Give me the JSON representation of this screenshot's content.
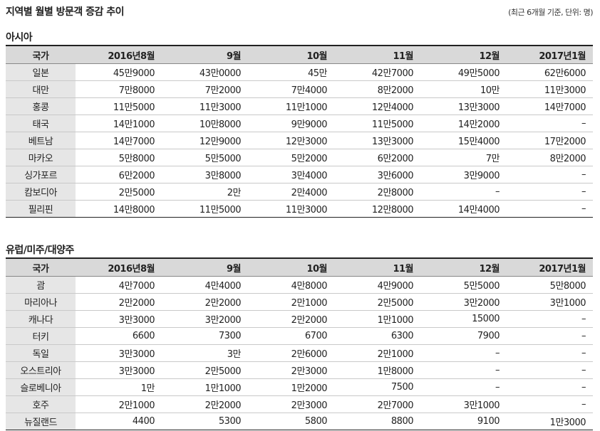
{
  "title": "지역별 월별 방문객 증감 추이",
  "note": "(최근 6개월 기준, 단위: 명)",
  "sections": [
    {
      "title": "아시아",
      "header": [
        "국가",
        "2016년8월",
        "9월",
        "10월",
        "11월",
        "12월",
        "2017년1월"
      ],
      "rows": [
        [
          "일본",
          "45만9000",
          "43만0000",
          "45만",
          "42만7000",
          "49만5000",
          "62만6000"
        ],
        [
          "대만",
          "7만8000",
          "7만2000",
          "7만4000",
          "8만2000",
          "10만",
          "11만3000"
        ],
        [
          "홍콩",
          "11만5000",
          "11만3000",
          "11만1000",
          "12만4000",
          "13만3000",
          "14만7000"
        ],
        [
          "태국",
          "14만1000",
          "10만8000",
          "9만9000",
          "11만5000",
          "14만2000",
          "–"
        ],
        [
          "베트남",
          "14만7000",
          "12만9000",
          "12만3000",
          "13만3000",
          "15만4000",
          "17만2000"
        ],
        [
          "마카오",
          "5만8000",
          "5만5000",
          "5만2000",
          "6만2000",
          "7만",
          "8만2000"
        ],
        [
          "싱가포르",
          "6만2000",
          "3만8000",
          "3만4000",
          "3만6000",
          "3만9000",
          "–"
        ],
        [
          "캄보디아",
          "2만5000",
          "2만",
          "2만4000",
          "2만8000",
          "–",
          "–"
        ],
        [
          "필리핀",
          "14만8000",
          "11만5000",
          "11만3000",
          "12만8000",
          "14만4000",
          "–"
        ]
      ]
    },
    {
      "title": "유럽/미주/대양주",
      "header": [
        "국가",
        "2016년8월",
        "9월",
        "10월",
        "11월",
        "12월",
        "2017년1월"
      ],
      "rows": [
        [
          "괌",
          "4만7000",
          "4만4000",
          "4만8000",
          "4만9000",
          "5만5000",
          "5만8000"
        ],
        [
          "마리아나",
          "2만2000",
          "2만2000",
          "2만1000",
          "2만5000",
          "3만2000",
          "3만1000"
        ],
        [
          "캐나다",
          "3만3000",
          "3만2000",
          "2만2000",
          "1만1000",
          "15000",
          "–"
        ],
        [
          "터키",
          "6600",
          "7300",
          "6700",
          "6300",
          "7900",
          "–"
        ],
        [
          "독일",
          "3만3000",
          "3만",
          "2만6000",
          "2만1000",
          "–",
          "–"
        ],
        [
          "오스트리아",
          "3만3000",
          "2만5000",
          "2만3000",
          "1만8000",
          "–",
          "–"
        ],
        [
          "슬로베니아",
          "1만",
          "1만1000",
          "1만2000",
          "7500",
          "–",
          "–"
        ],
        [
          "호주",
          "2만1000",
          "2만2000",
          "2만3000",
          "2만7000",
          "3만1000",
          "–"
        ],
        [
          "뉴질랜드",
          "4400",
          "5300",
          "5800",
          "8800",
          "9100",
          "1만3000"
        ]
      ]
    }
  ]
}
